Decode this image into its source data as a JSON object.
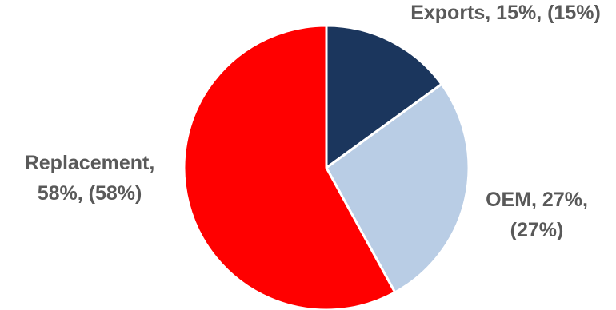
{
  "chart_data": {
    "type": "pie",
    "title": "",
    "start_angle_deg": 0,
    "direction": "clockwise",
    "slices": [
      {
        "label": "Exports",
        "value": 15,
        "color": "#1b365d",
        "data_label": [
          "Exports, 15%, (15%)"
        ]
      },
      {
        "label": "OEM",
        "value": 27,
        "color": "#b9cde5",
        "data_label": [
          "OEM, 27%,",
          "(27%)"
        ]
      },
      {
        "label": "Replacement",
        "value": 58,
        "color": "#ff0000",
        "data_label": [
          "Replacement,",
          "58%, (58%)"
        ]
      }
    ],
    "legend": "none"
  }
}
